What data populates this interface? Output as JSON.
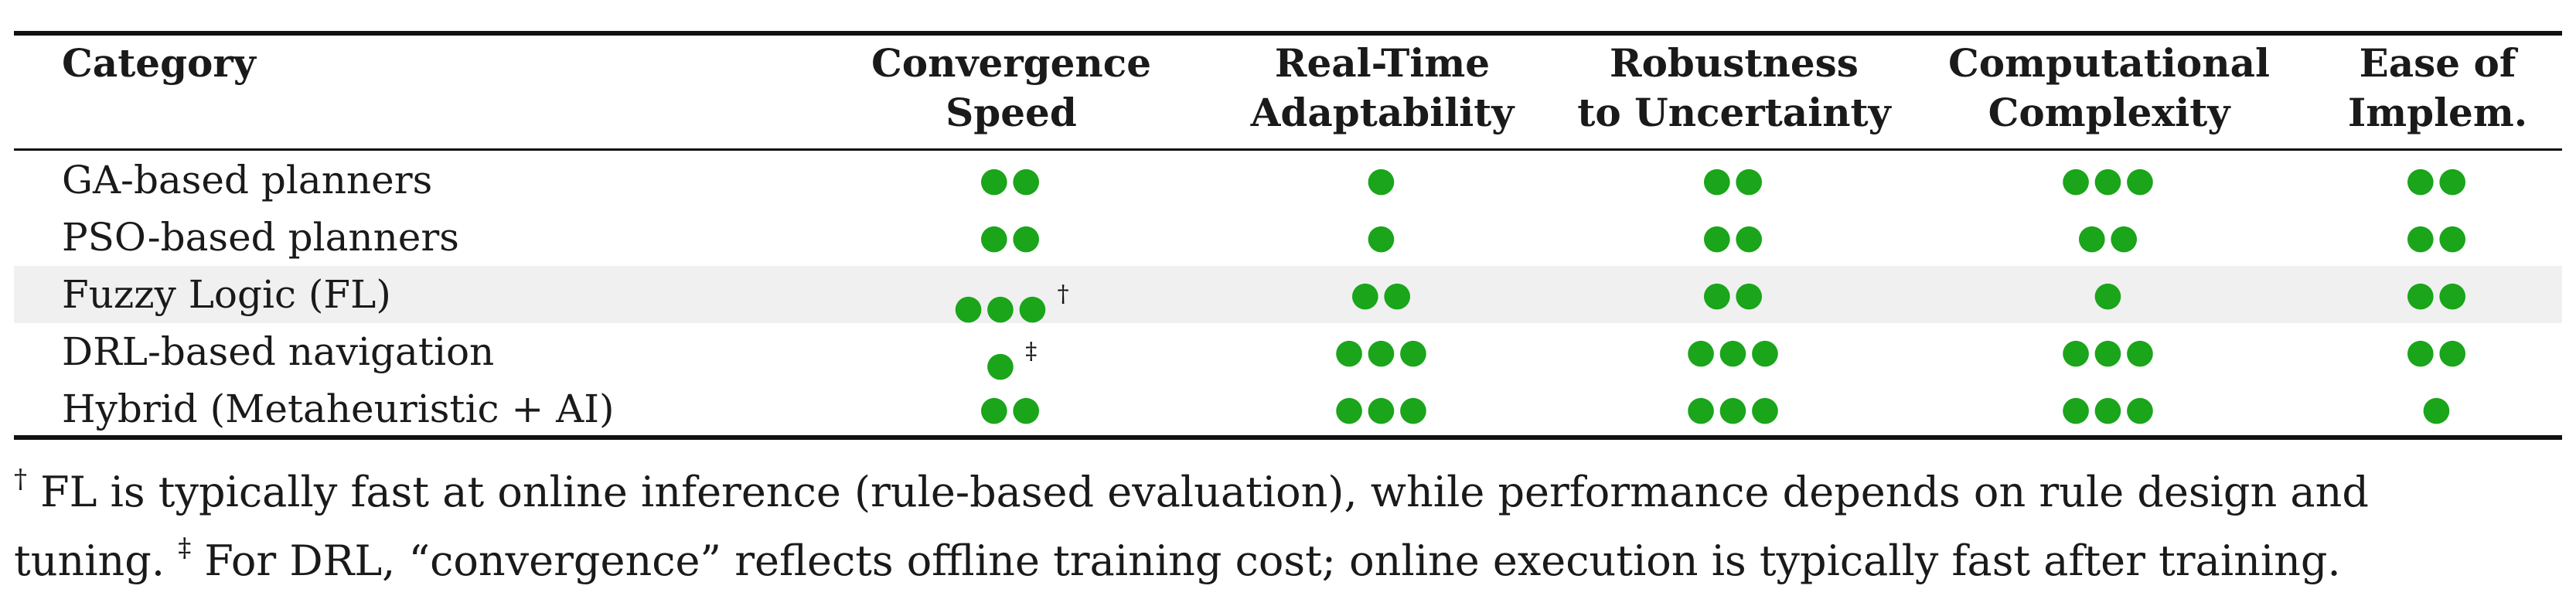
{
  "table": {
    "headers": [
      {
        "line1": "Category",
        "line2": ""
      },
      {
        "line1": "Convergence",
        "line2": "Speed"
      },
      {
        "line1": "Real-Time",
        "line2": "Adaptability"
      },
      {
        "line1": "Robustness",
        "line2": "to Uncertainty"
      },
      {
        "line1": "Computational",
        "line2": "Complexity"
      },
      {
        "line1": "Ease of",
        "line2": "Implem."
      }
    ],
    "rows": [
      {
        "label": "GA-based planners",
        "cells": [
          {
            "dots": "●●",
            "mark": ""
          },
          {
            "dots": "●",
            "mark": ""
          },
          {
            "dots": "●●",
            "mark": ""
          },
          {
            "dots": "●●●",
            "mark": ""
          },
          {
            "dots": "●●",
            "mark": ""
          }
        ]
      },
      {
        "label": "PSO-based planners",
        "cells": [
          {
            "dots": "●●",
            "mark": ""
          },
          {
            "dots": "●",
            "mark": ""
          },
          {
            "dots": "●●",
            "mark": ""
          },
          {
            "dots": "●●",
            "mark": ""
          },
          {
            "dots": "●●",
            "mark": ""
          }
        ]
      },
      {
        "label": "Fuzzy Logic (FL)",
        "cells": [
          {
            "dots": "●●●",
            "mark": "†"
          },
          {
            "dots": "●●",
            "mark": ""
          },
          {
            "dots": "●●",
            "mark": ""
          },
          {
            "dots": "●",
            "mark": ""
          },
          {
            "dots": "●●",
            "mark": ""
          }
        ]
      },
      {
        "label": "DRL-based navigation",
        "cells": [
          {
            "dots": "●",
            "mark": "‡"
          },
          {
            "dots": "●●●",
            "mark": ""
          },
          {
            "dots": "●●●",
            "mark": ""
          },
          {
            "dots": "●●●",
            "mark": ""
          },
          {
            "dots": "●●",
            "mark": ""
          }
        ]
      },
      {
        "label": "Hybrid (Metaheuristic + AI)",
        "cells": [
          {
            "dots": "●●",
            "mark": ""
          },
          {
            "dots": "●●●",
            "mark": ""
          },
          {
            "dots": "●●●",
            "mark": ""
          },
          {
            "dots": "●●●",
            "mark": ""
          },
          {
            "dots": "●",
            "mark": ""
          }
        ]
      }
    ]
  },
  "footnote": {
    "dagger": "†",
    "text1": " FL is typically fast at online inference (rule-based evaluation), while performance depends on rule design and",
    "text2a": "tuning. ",
    "ddagger": "‡",
    "text2b": " For DRL, “convergence” reflects offline training cost; online execution is typically fast after training."
  },
  "colors": {
    "dot": "#1aa51a",
    "rule": "#111111",
    "shade": "#f0f0f0"
  }
}
